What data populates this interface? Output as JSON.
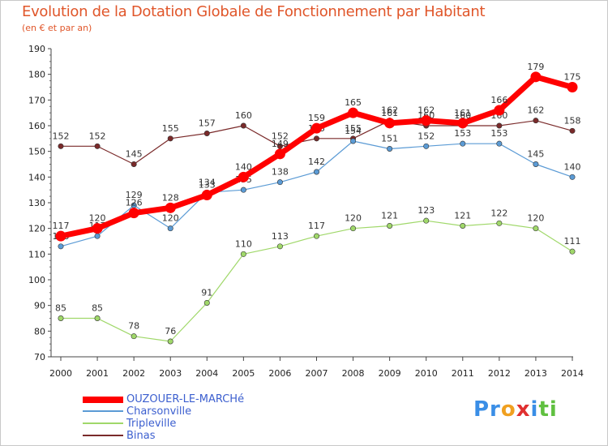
{
  "chart_data": {
    "type": "line",
    "title": "Evolution de la Dotation Globale de Fonctionnement par Habitant",
    "subtitle": "(en € et par an)",
    "categories": [
      "2000",
      "2001",
      "2002",
      "2003",
      "2004",
      "2005",
      "2006",
      "2007",
      "2008",
      "2009",
      "2010",
      "2011",
      "2012",
      "2013",
      "2014"
    ],
    "ylim": [
      70,
      190
    ],
    "yticks": [
      70,
      80,
      90,
      100,
      110,
      120,
      130,
      140,
      150,
      160,
      170,
      180,
      190
    ],
    "grid": false,
    "legend_position": "bottom-left",
    "series": [
      {
        "name": "Binas",
        "color": "#7a2a2a",
        "values": [
          152,
          152,
          145,
          155,
          157,
          160,
          152,
          155,
          155,
          162,
          160,
          160,
          160,
          162,
          158
        ]
      },
      {
        "name": "Charsonville",
        "color": "#5b9bd5",
        "values": [
          113,
          117,
          129,
          120,
          134,
          135,
          138,
          142,
          154,
          151,
          152,
          153,
          153,
          145,
          140
        ]
      },
      {
        "name": "Tripleville",
        "color": "#a0d86a",
        "values": [
          85,
          85,
          78,
          76,
          91,
          110,
          113,
          117,
          120,
          121,
          123,
          121,
          122,
          120,
          111
        ]
      },
      {
        "name": "OUZOUER-LE-MARCHé",
        "color": "#ff0000",
        "values": [
          117,
          120,
          126,
          128,
          133,
          140,
          149,
          159,
          165,
          161,
          162,
          161,
          166,
          179,
          175
        ]
      }
    ],
    "legend": [
      "OUZOUER-LE-MARCHé",
      "Charsonville",
      "Tripleville",
      "Binas"
    ]
  },
  "logo": {
    "parts": [
      "Pr",
      "o",
      "x",
      "i",
      "ti"
    ],
    "colors": [
      "#3a8ee6",
      "#f0a020",
      "#e03030",
      "#3a8ee6",
      "#60c040"
    ]
  }
}
